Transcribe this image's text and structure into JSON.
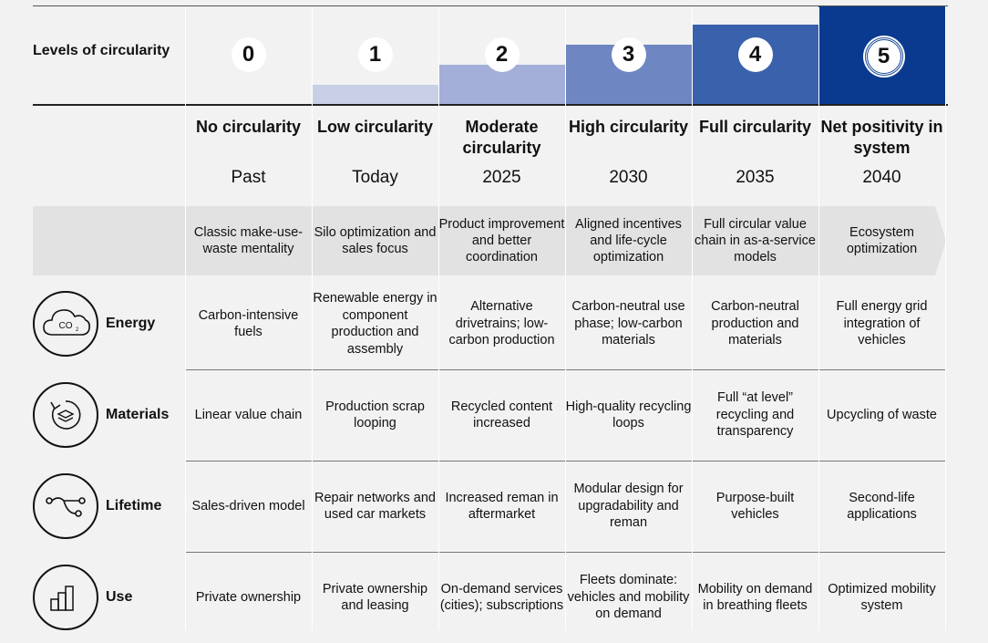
{
  "header": {
    "levels_label": "Levels of circularity"
  },
  "colors": {
    "level_fills": [
      "#f2f2f2",
      "#c9cfe6",
      "#a3afd8",
      "#6e86c1",
      "#3a62ac",
      "#0a3a8f"
    ]
  },
  "columns": [
    {
      "level": "0",
      "title": "No circularity",
      "year": "Past",
      "step": 0,
      "description": "Classic make-use-waste mentality"
    },
    {
      "level": "1",
      "title": "Low circularity",
      "year": "Today",
      "step": 1,
      "description": "Silo optimization and sales focus"
    },
    {
      "level": "2",
      "title": "Moderate circularity",
      "year": "2025",
      "step": 2,
      "description": "Product improvement and better coordination"
    },
    {
      "level": "3",
      "title": "High circularity",
      "year": "2030",
      "step": 3,
      "description": "Aligned incentives and life-cycle optimization"
    },
    {
      "level": "4",
      "title": "Full circularity",
      "year": "2035",
      "step": 4,
      "description": "Full circular value chain in as-a-service models"
    },
    {
      "level": "5",
      "title": "Net positivity in system",
      "year": "2040",
      "step": 5,
      "description": "Ecosystem optimization"
    }
  ],
  "rows": [
    {
      "label": "Energy",
      "icon": "co2-cloud-icon",
      "icon_text": "CO2",
      "cells": [
        "Carbon-intensive fuels",
        "Renewable energy in component production and assembly",
        "Alternative drivetrains; low-carbon production",
        "Carbon-neutral use phase; low-carbon materials",
        "Carbon-neutral production and materials",
        "Full energy grid integration of vehicles"
      ]
    },
    {
      "label": "Materials",
      "icon": "recycle-layers-icon",
      "cells": [
        "Linear value chain",
        "Production scrap looping",
        "Recycled content increased",
        "High-quality recycling loops",
        "Full “at level” recycling and transparency",
        "Upcycling of waste"
      ]
    },
    {
      "label": "Lifetime",
      "icon": "branch-path-icon",
      "cells": [
        "Sales-driven model",
        "Repair networks and used car markets",
        "Increased reman in aftermarket",
        "Modular design for upgradability and reman",
        "Purpose-built vehicles",
        "Second-life applications"
      ]
    },
    {
      "label": "Use",
      "icon": "bar-chart-icon",
      "cells": [
        "Private ownership",
        "Private ownership and leasing",
        "On-demand services (cities); subscriptions",
        "Fleets dominate: vehicles and mobility on demand",
        "Mobility on demand in breathing fleets",
        "Optimized mobility system"
      ]
    }
  ]
}
